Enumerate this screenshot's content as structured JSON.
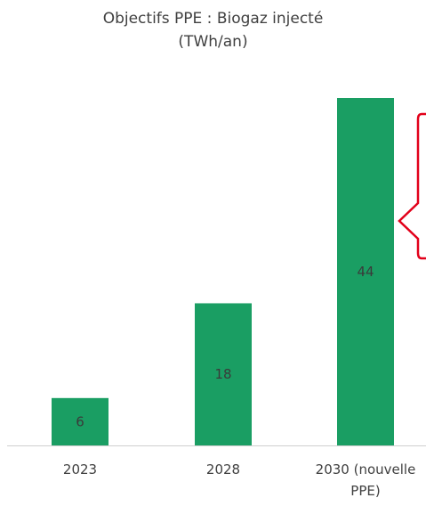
{
  "chart_data": {
    "type": "bar",
    "title_line1": "Objectifs PPE : Biogaz injecté",
    "title_line2": "(TWh/an)",
    "categories": [
      {
        "lines": [
          "2023"
        ]
      },
      {
        "lines": [
          "2028"
        ]
      },
      {
        "lines": [
          "2030 (nouvelle",
          "PPE)"
        ]
      }
    ],
    "values": [
      6,
      18,
      44
    ],
    "ylim": [
      0,
      44
    ],
    "grid": false,
    "legend": "none",
    "bar_color": "#1a9e63",
    "axis_color": "#d0d0d0",
    "callout_color": "#e2001a"
  }
}
